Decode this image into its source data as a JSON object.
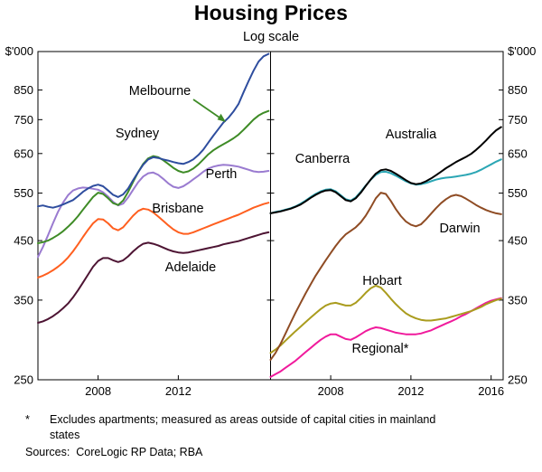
{
  "title": "Housing Prices",
  "subtitle": "Log scale",
  "footnote": {
    "marker": "*",
    "text": "Excludes apartments; measured as areas outside of capital cities in mainland states"
  },
  "sources": "Sources:  CoreLogic RP Data; RBA",
  "chart_data": {
    "type": "line",
    "y_scale": "log",
    "y_unit": "$'000",
    "ylim": [
      250,
      1000
    ],
    "y_ticks": [
      850,
      750,
      650,
      550,
      450,
      350,
      250
    ],
    "x_start": 2005.0,
    "x_step": 0.25,
    "xlim": [
      2005,
      2016.6
    ],
    "grid": false,
    "legend": "inline-labels",
    "panels": [
      {
        "name": "capital-cities-left",
        "x_ticks": [
          2008,
          2012
        ],
        "x_tick_labels": [
          "2008",
          "2012"
        ],
        "series": [
          {
            "name": "Sydney",
            "color": "#2e4d9e",
            "values": [
              520,
              522,
              519,
              517,
              520,
              524,
              529,
              534,
              543,
              553,
              561,
              567,
              570,
              566,
              556,
              546,
              541,
              547,
              561,
              581,
              601,
              620,
              634,
              640,
              638,
              634,
              631,
              627,
              624,
              622,
              627,
              634,
              646,
              661,
              681,
              701,
              721,
              741,
              756,
              776,
              801,
              841,
              882,
              922,
              958,
              980,
              990
            ]
          },
          {
            "name": "Melbourne",
            "color": "#3e8b26",
            "values": [
              445,
              447,
              450,
              455,
              461,
              468,
              477,
              487,
              499,
              513,
              527,
              541,
              551,
              548,
              538,
              527,
              523,
              533,
              553,
              577,
              601,
              622,
              637,
              643,
              640,
              632,
              622,
              612,
              604,
              600,
              603,
              610,
              621,
              634,
              648,
              659,
              668,
              676,
              684,
              693,
              704,
              718,
              734,
              750,
              763,
              772,
              778
            ]
          },
          {
            "name": "Perth",
            "color": "#9a7bd0",
            "values": [
              420,
              438,
              460,
              484,
              508,
              528,
              545,
              556,
              561,
              563,
              562,
              560,
              558,
              552,
              542,
              530,
              522,
              526,
              540,
              558,
              576,
              590,
              598,
              600,
              594,
              584,
              573,
              565,
              562,
              566,
              574,
              583,
              592,
              602,
              610,
              615,
              618,
              620,
              619,
              617,
              615,
              611,
              607,
              603,
              601,
              602,
              604
            ]
          },
          {
            "name": "Brisbane",
            "color": "#ff5f1f",
            "values": [
              385,
              388,
              392,
              397,
              403,
              410,
              419,
              430,
              443,
              457,
              471,
              484,
              493,
              492,
              484,
              474,
              470,
              476,
              488,
              500,
              510,
              515,
              513,
              507,
              498,
              489,
              480,
              472,
              466,
              463,
              463,
              466,
              470,
              474,
              478,
              482,
              486,
              490,
              494,
              498,
              502,
              507,
              512,
              517,
              521,
              525,
              528
            ]
          },
          {
            "name": "Adelaide",
            "color": "#4d1433",
            "values": [
              318,
              320,
              323,
              327,
              332,
              338,
              345,
              354,
              365,
              377,
              390,
              403,
              413,
              418,
              418,
              414,
              411,
              414,
              421,
              430,
              438,
              444,
              446,
              444,
              441,
              437,
              433,
              430,
              428,
              427,
              428,
              430,
              432,
              434,
              436,
              438,
              440,
              443,
              445,
              447,
              449,
              452,
              455,
              458,
              461,
              464,
              466
            ]
          }
        ]
      },
      {
        "name": "capital-cities-right",
        "x_ticks": [
          2008,
          2012,
          2016
        ],
        "x_tick_labels": [
          "2008",
          "2012",
          "2016"
        ],
        "series": [
          {
            "name": "Australia",
            "color": "#000000",
            "values": [
              505,
              507,
              509,
              512,
              515,
              519,
              524,
              531,
              539,
              546,
              552,
              556,
              557,
              552,
              543,
              534,
              531,
              538,
              551,
              567,
              583,
              597,
              606,
              608,
              604,
              597,
              589,
              581,
              574,
              571,
              573,
              578,
              585,
              593,
              602,
              611,
              619,
              627,
              634,
              641,
              649,
              660,
              673,
              687,
              703,
              717,
              727
            ]
          },
          {
            "name": "Canberra",
            "color": "#2ba6b4",
            "values": [
              505,
              508,
              510,
              513,
              516,
              520,
              526,
              533,
              541,
              548,
              554,
              558,
              559,
              554,
              545,
              536,
              533,
              540,
              553,
              568,
              582,
              594,
              601,
              602,
              598,
              592,
              585,
              578,
              573,
              570,
              571,
              574,
              578,
              582,
              585,
              587,
              588,
              590,
              592,
              594,
              597,
              601,
              607,
              614,
              621,
              628,
              634
            ]
          },
          {
            "name": "Darwin",
            "color": "#8f4c24",
            "values": [
              272,
              280,
              291,
              304,
              318,
              332,
              346,
              360,
              374,
              388,
              401,
              414,
              427,
              440,
              452,
              462,
              469,
              476,
              486,
              500,
              518,
              538,
              551,
              548,
              532,
              514,
              499,
              488,
              481,
              478,
              482,
              492,
              504,
              516,
              527,
              536,
              543,
              546,
              543,
              537,
              530,
              523,
              517,
              512,
              508,
              505,
              503
            ]
          },
          {
            "name": "Hobart",
            "color": "#aa9c1e",
            "values": [
              280,
              284,
              289,
              295,
              301,
              307,
              313,
              319,
              325,
              331,
              337,
              342,
              345,
              346,
              344,
              342,
              342,
              346,
              353,
              361,
              368,
              372,
              369,
              361,
              352,
              344,
              337,
              331,
              327,
              324,
              322,
              321,
              321,
              322,
              323,
              324,
              326,
              328,
              330,
              332,
              334,
              337,
              340,
              344,
              347,
              350,
              352
            ]
          },
          {
            "name": "Regional*",
            "color": "#f01a9c",
            "values": [
              253,
              256,
              259,
              263,
              267,
              271,
              276,
              281,
              286,
              291,
              296,
              300,
              303,
              303,
              300,
              297,
              296,
              299,
              303,
              307,
              310,
              312,
              311,
              309,
              307,
              305,
              304,
              303,
              303,
              303,
              304,
              306,
              308,
              311,
              314,
              317,
              320,
              323,
              327,
              330,
              334,
              338,
              342,
              346,
              349,
              351,
              353
            ]
          }
        ]
      }
    ]
  }
}
